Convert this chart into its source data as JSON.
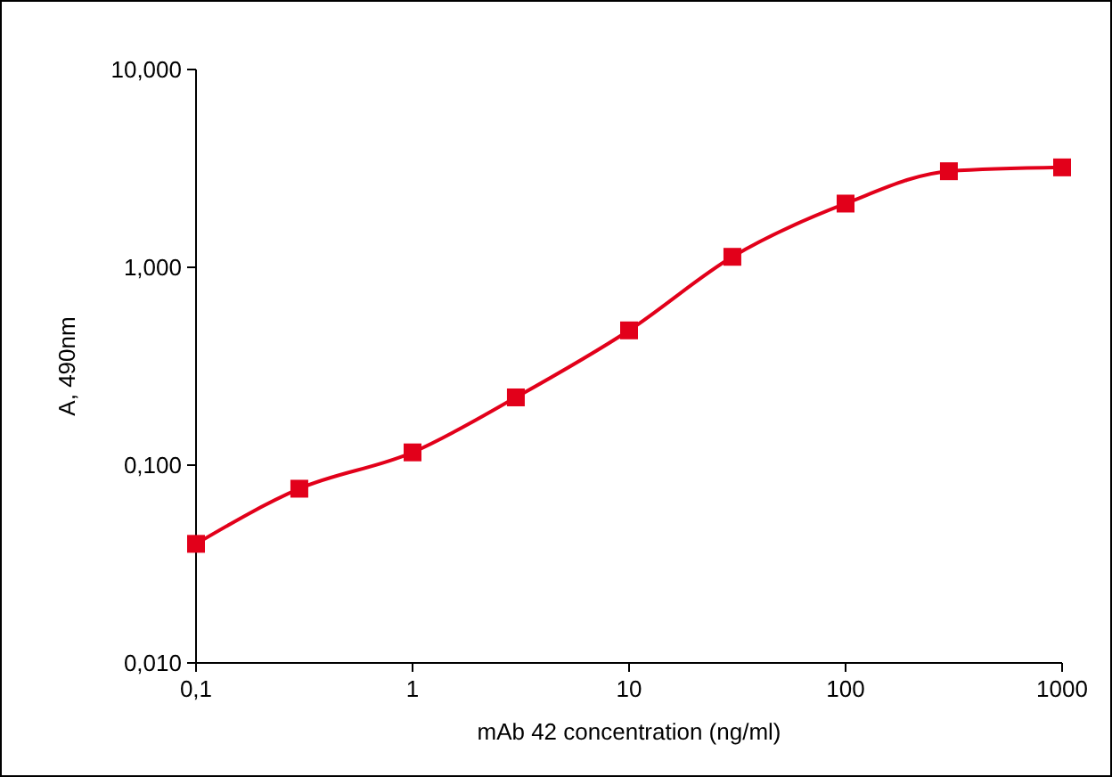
{
  "chart_data": {
    "type": "line",
    "xlabel": "mAb 42 concentration (ng/ml)",
    "ylabel": "A, 490nm",
    "log": "xy",
    "x": [
      0.1,
      0.3,
      1,
      3,
      10,
      30,
      100,
      300,
      1000
    ],
    "series": [
      {
        "color": "#e2001a",
        "values": [
          0.04,
          0.076,
          0.116,
          0.22,
          0.48,
          1.13,
          2.1,
          3.06,
          3.2
        ]
      }
    ],
    "xlim": [
      0.1,
      1000
    ],
    "ylim": [
      0.01,
      10
    ],
    "xticks": [
      {
        "value": 0.1,
        "label": "0,1"
      },
      1,
      10,
      100,
      1000
    ],
    "yticks": [
      {
        "value": 0.01,
        "label": "0,010"
      },
      {
        "value": 0.1,
        "label": "0,100"
      },
      {
        "value": 1,
        "label": "1,000"
      },
      {
        "value": 10,
        "label": "10,000"
      }
    ],
    "marker": "square",
    "line_style": "solid",
    "grid": false
  }
}
